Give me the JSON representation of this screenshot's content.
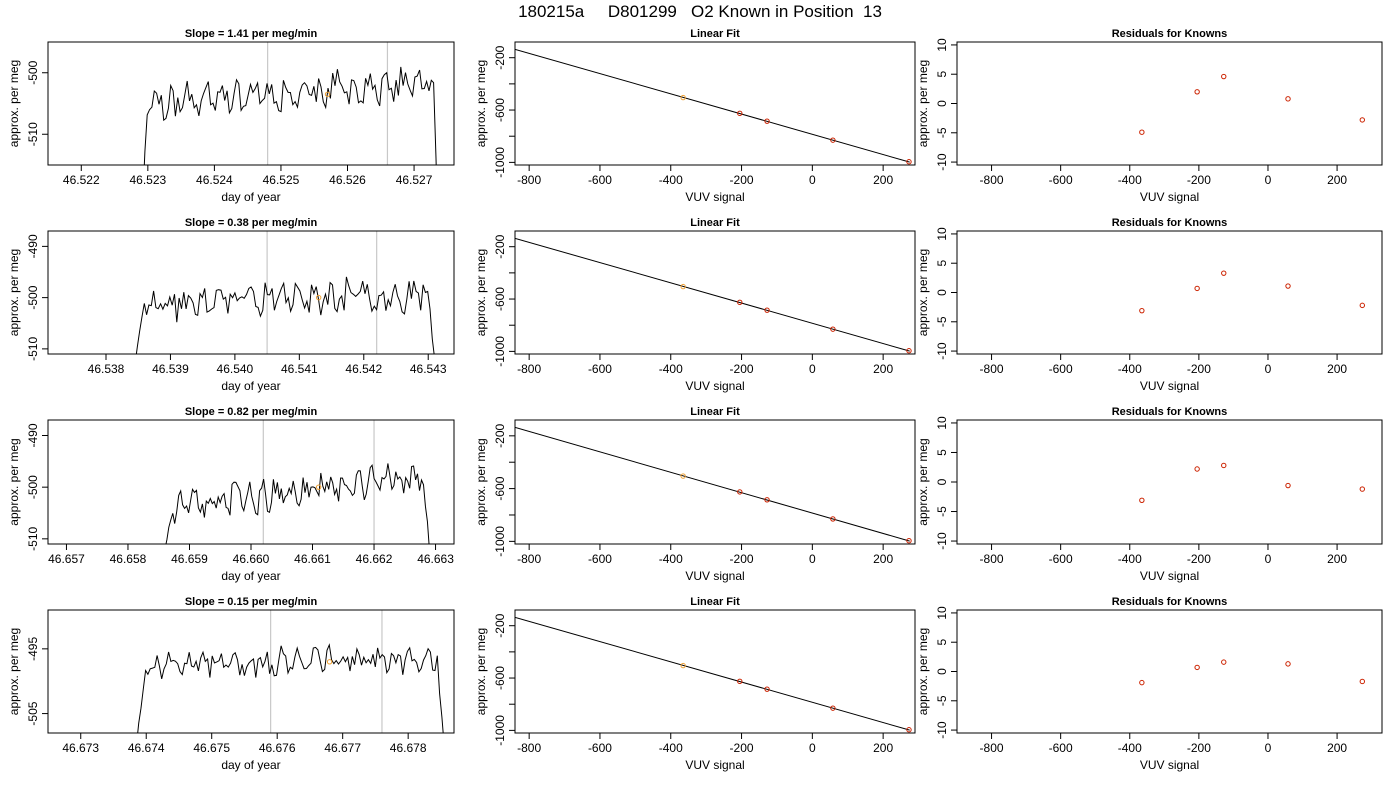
{
  "figure": {
    "title": "180215a     D801299   O2 Known in Position  13"
  },
  "chart_data": [
    {
      "type": "line",
      "title": "Slope =  1.41  per meg/min",
      "xlabel": "day of year",
      "ylabel": "approx. per meg",
      "xlim": [
        46.5215,
        46.5276
      ],
      "ylim": [
        -515,
        -495
      ],
      "xticks": [
        46.522,
        46.523,
        46.524,
        46.525,
        46.526,
        46.527
      ],
      "xtick_labels": [
        "46.522",
        "46.523",
        "46.524",
        "46.525",
        "46.526",
        "46.527"
      ],
      "yticks": [
        -510,
        -500
      ],
      "ytick_labels": [
        "-510",
        "-500"
      ],
      "vlines": [
        46.5248,
        46.5266
      ],
      "highlight_point": {
        "x": 46.5257,
        "y": -503.5
      },
      "series_spec": {
        "x_start": 46.52285,
        "x_end": 46.5274,
        "n": 130,
        "base": -505,
        "trend": 3.5,
        "amp": 2.2,
        "seed": 11,
        "ramp_from": -540,
        "drop_to": -540
      }
    },
    {
      "type": "scatter",
      "title": "Linear Fit",
      "xlabel": "VUV signal",
      "ylabel": "approx. per meg",
      "xlim": [
        -840,
        290
      ],
      "ylim": [
        -1020,
        -80
      ],
      "xticks": [
        -800,
        -600,
        -400,
        -200,
        0,
        200
      ],
      "xtick_labels": [
        "-800",
        "-600",
        "-400",
        "-200",
        "0",
        "200"
      ],
      "yticks": [
        -1000,
        -600,
        -200
      ],
      "ytick_labels": [
        "-1000",
        "-600",
        "-200"
      ],
      "yticks_minor": [
        -800,
        -400
      ],
      "fit_line": {
        "x": [
          -840,
          275
        ],
        "y": [
          -136,
          -998
        ]
      },
      "points": [
        {
          "x": -365,
          "y": -505,
          "highlight": true
        },
        {
          "x": -205,
          "y": -625
        },
        {
          "x": -128,
          "y": -685
        },
        {
          "x": 58,
          "y": -830
        },
        {
          "x": 273,
          "y": -995
        }
      ]
    },
    {
      "type": "scatter",
      "title": "Residuals for Knowns",
      "xlabel": "VUV signal",
      "ylabel": "approx. per meg",
      "xlim": [
        -900,
        330
      ],
      "ylim": [
        -10.5,
        10.5
      ],
      "xticks": [
        -800,
        -600,
        -400,
        -200,
        0,
        200
      ],
      "xtick_labels": [
        "-800",
        "-600",
        "-400",
        "-200",
        "0",
        "200"
      ],
      "yticks": [
        -10,
        -5,
        0,
        5,
        10
      ],
      "ytick_labels": [
        "-10",
        "-5",
        "0",
        "5",
        "10"
      ],
      "points": [
        {
          "x": -365,
          "y": -4.9
        },
        {
          "x": -205,
          "y": 2.0
        },
        {
          "x": -128,
          "y": 4.6
        },
        {
          "x": 58,
          "y": 0.8
        },
        {
          "x": 273,
          "y": -2.8
        }
      ]
    },
    {
      "type": "line",
      "title": "Slope =  0.38  per meg/min",
      "xlabel": "day of year",
      "ylabel": "approx. per meg",
      "xlim": [
        46.5371,
        46.5434
      ],
      "ylim": [
        -511,
        -487
      ],
      "xticks": [
        46.538,
        46.539,
        46.54,
        46.541,
        46.542,
        46.543
      ],
      "xtick_labels": [
        "46.538",
        "46.539",
        "46.540",
        "46.541",
        "46.542",
        "46.543"
      ],
      "yticks": [
        -510,
        -500,
        -490
      ],
      "ytick_labels": [
        "-510",
        "-500",
        "-490"
      ],
      "vlines": [
        46.5405,
        46.5422
      ],
      "highlight_point": {
        "x": 46.5413,
        "y": -500
      },
      "series_spec": {
        "x_start": 46.53845,
        "x_end": 46.5431,
        "n": 130,
        "base": -501.5,
        "trend": 2.5,
        "amp": 2.8,
        "seed": 23,
        "ramp_from": -513,
        "drop_to": -512
      }
    },
    {
      "type": "scatter",
      "title": "Linear Fit",
      "xlabel": "VUV signal",
      "ylabel": "approx. per meg",
      "xlim": [
        -840,
        290
      ],
      "ylim": [
        -1020,
        -80
      ],
      "xticks": [
        -800,
        -600,
        -400,
        -200,
        0,
        200
      ],
      "xtick_labels": [
        "-800",
        "-600",
        "-400",
        "-200",
        "0",
        "200"
      ],
      "yticks": [
        -1000,
        -600,
        -200
      ],
      "ytick_labels": [
        "-1000",
        "-600",
        "-200"
      ],
      "yticks_minor": [
        -800,
        -400
      ],
      "fit_line": {
        "x": [
          -840,
          275
        ],
        "y": [
          -136,
          -998
        ]
      },
      "points": [
        {
          "x": -365,
          "y": -505,
          "highlight": true
        },
        {
          "x": -205,
          "y": -625
        },
        {
          "x": -128,
          "y": -685
        },
        {
          "x": 58,
          "y": -830
        },
        {
          "x": 273,
          "y": -995
        }
      ]
    },
    {
      "type": "scatter",
      "title": "Residuals for Knowns",
      "xlabel": "VUV signal",
      "ylabel": "approx. per meg",
      "xlim": [
        -900,
        330
      ],
      "ylim": [
        -10.5,
        10.5
      ],
      "xticks": [
        -800,
        -600,
        -400,
        -200,
        0,
        200
      ],
      "xtick_labels": [
        "-800",
        "-600",
        "-400",
        "-200",
        "0",
        "200"
      ],
      "yticks": [
        -10,
        -5,
        0,
        5,
        10
      ],
      "ytick_labels": [
        "-10",
        "-5",
        "0",
        "5",
        "10"
      ],
      "points": [
        {
          "x": -365,
          "y": -3.1
        },
        {
          "x": -205,
          "y": 0.7
        },
        {
          "x": -128,
          "y": 3.3
        },
        {
          "x": 58,
          "y": 1.1
        },
        {
          "x": 273,
          "y": -2.2
        }
      ]
    },
    {
      "type": "line",
      "title": "Slope =  0.82  per meg/min",
      "xlabel": "day of year",
      "ylabel": "approx. per meg",
      "xlim": [
        46.6567,
        46.6633
      ],
      "ylim": [
        -511,
        -487
      ],
      "xticks": [
        46.657,
        46.658,
        46.659,
        46.66,
        46.661,
        46.662,
        46.663
      ],
      "xtick_labels": [
        "46.657",
        "46.658",
        "46.659",
        "46.660",
        "46.661",
        "46.662",
        "46.663"
      ],
      "yticks": [
        -510,
        -500,
        -490
      ],
      "ytick_labels": [
        "-510",
        "-500",
        "-490"
      ],
      "vlines": [
        46.6602,
        46.662
      ],
      "highlight_point": {
        "x": 46.6611,
        "y": -500
      },
      "series_spec": {
        "x_start": 46.6586,
        "x_end": 46.6629,
        "n": 135,
        "base": -504.5,
        "trend": 7,
        "amp": 2.6,
        "seed": 37,
        "ramp_from": -512,
        "drop_to": -512
      }
    },
    {
      "type": "scatter",
      "title": "Linear Fit",
      "xlabel": "VUV signal",
      "ylabel": "approx. per meg",
      "xlim": [
        -840,
        290
      ],
      "ylim": [
        -1020,
        -80
      ],
      "xticks": [
        -800,
        -600,
        -400,
        -200,
        0,
        200
      ],
      "xtick_labels": [
        "-800",
        "-600",
        "-400",
        "-200",
        "0",
        "200"
      ],
      "yticks": [
        -1000,
        -600,
        -200
      ],
      "ytick_labels": [
        "-1000",
        "-600",
        "-200"
      ],
      "yticks_minor": [
        -800,
        -400
      ],
      "fit_line": {
        "x": [
          -840,
          275
        ],
        "y": [
          -136,
          -998
        ]
      },
      "points": [
        {
          "x": -365,
          "y": -505,
          "highlight": true
        },
        {
          "x": -205,
          "y": -625
        },
        {
          "x": -128,
          "y": -685
        },
        {
          "x": 58,
          "y": -830
        },
        {
          "x": 273,
          "y": -995
        }
      ]
    },
    {
      "type": "scatter",
      "title": "Residuals for Knowns",
      "xlabel": "VUV signal",
      "ylabel": "approx. per meg",
      "xlim": [
        -900,
        330
      ],
      "ylim": [
        -10.5,
        10.5
      ],
      "xticks": [
        -800,
        -600,
        -400,
        -200,
        0,
        200
      ],
      "xtick_labels": [
        "-800",
        "-600",
        "-400",
        "-200",
        "0",
        "200"
      ],
      "yticks": [
        -10,
        -5,
        0,
        5,
        10
      ],
      "ytick_labels": [
        "-10",
        "-5",
        "0",
        "5",
        "10"
      ],
      "points": [
        {
          "x": -365,
          "y": -3.1
        },
        {
          "x": -205,
          "y": 2.2
        },
        {
          "x": -128,
          "y": 2.8
        },
        {
          "x": 58,
          "y": -0.6
        },
        {
          "x": 273,
          "y": -1.2
        }
      ]
    },
    {
      "type": "line",
      "title": "Slope =  0.15  per meg/min",
      "xlabel": "day of year",
      "ylabel": "approx. per meg",
      "xlim": [
        46.6725,
        46.6787
      ],
      "ylim": [
        -508,
        -489
      ],
      "xticks": [
        46.673,
        46.674,
        46.675,
        46.676,
        46.677,
        46.678
      ],
      "xtick_labels": [
        "46.673",
        "46.674",
        "46.675",
        "46.676",
        "46.677",
        "46.678"
      ],
      "yticks": [
        -505,
        -495
      ],
      "ytick_labels": [
        "-505",
        "-495"
      ],
      "vlines": [
        46.6759,
        46.6776
      ],
      "highlight_point": {
        "x": 46.6768,
        "y": -497
      },
      "series_spec": {
        "x_start": 46.67385,
        "x_end": 46.67855,
        "n": 135,
        "base": -497.5,
        "trend": 1,
        "amp": 1.8,
        "seed": 53,
        "ramp_from": -510,
        "drop_to": -510
      }
    },
    {
      "type": "scatter",
      "title": "Linear Fit",
      "xlabel": "VUV signal",
      "ylabel": "approx. per meg",
      "xlim": [
        -840,
        290
      ],
      "ylim": [
        -1020,
        -80
      ],
      "xticks": [
        -800,
        -600,
        -400,
        -200,
        0,
        200
      ],
      "xtick_labels": [
        "-800",
        "-600",
        "-400",
        "-200",
        "0",
        "200"
      ],
      "yticks": [
        -1000,
        -600,
        -200
      ],
      "ytick_labels": [
        "-1000",
        "-600",
        "-200"
      ],
      "yticks_minor": [
        -800,
        -400
      ],
      "fit_line": {
        "x": [
          -840,
          275
        ],
        "y": [
          -136,
          -998
        ]
      },
      "points": [
        {
          "x": -365,
          "y": -505,
          "highlight": true
        },
        {
          "x": -205,
          "y": -625
        },
        {
          "x": -128,
          "y": -685
        },
        {
          "x": 58,
          "y": -830
        },
        {
          "x": 273,
          "y": -995
        }
      ]
    },
    {
      "type": "scatter",
      "title": "Residuals for Knowns",
      "xlabel": "VUV signal",
      "ylabel": "approx. per meg",
      "xlim": [
        -900,
        330
      ],
      "ylim": [
        -10.5,
        10.5
      ],
      "xticks": [
        -800,
        -600,
        -400,
        -200,
        0,
        200
      ],
      "xtick_labels": [
        "-800",
        "-600",
        "-400",
        "-200",
        "0",
        "200"
      ],
      "yticks": [
        -10,
        -5,
        0,
        5,
        10
      ],
      "ytick_labels": [
        "-10",
        "-5",
        "0",
        "5",
        "10"
      ],
      "points": [
        {
          "x": -365,
          "y": -1.9
        },
        {
          "x": -205,
          "y": 0.7
        },
        {
          "x": -128,
          "y": 1.6
        },
        {
          "x": 58,
          "y": 1.3
        },
        {
          "x": 273,
          "y": -1.7
        }
      ]
    }
  ],
  "colors": {
    "line": "#000000",
    "point": "#cc2200",
    "highlight": "#f0a030",
    "vline": "#c8c8c8"
  }
}
